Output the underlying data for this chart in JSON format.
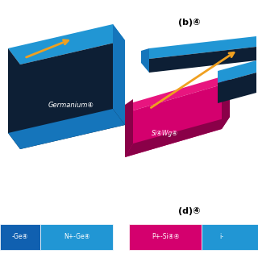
{
  "bg_color": "#ffffff",
  "blue": "#2196d4",
  "blue_side": "#1575bb",
  "blue_dark_face": "#0d1f35",
  "blue_legend_dark": "#1060b0",
  "magenta": "#d4006e",
  "magenta_top": "#e8157f",
  "magenta_dark": "#8a0048",
  "orange": "#f0a020",
  "label_b": "(b)④",
  "label_d": "(d)④",
  "label_ge": "Germanium④",
  "label_siwg": "Si④Wg④",
  "label_ge_n": "N+-Ge④",
  "label_ge_p": "-Ge④",
  "label_psi": "P+-Si④④",
  "label_i": "i-"
}
